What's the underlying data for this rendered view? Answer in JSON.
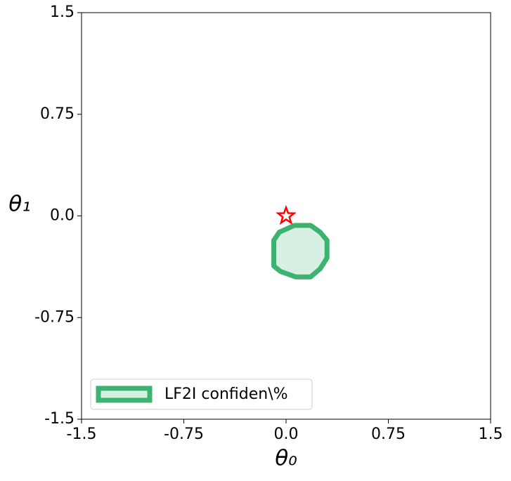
{
  "chart_data": {
    "type": "region",
    "x_label": "θ₀",
    "y_label": "θ₁",
    "xlim": [
      -1.5,
      1.5
    ],
    "ylim": [
      -1.5,
      1.5
    ],
    "xticks": [
      -1.5,
      -0.75,
      {
        "value": 0,
        "label": "0.0"
      },
      0.75,
      1.5
    ],
    "yticks": [
      -1.5,
      -0.75,
      {
        "value": 0,
        "label": "0.0"
      },
      0.75,
      1.5
    ],
    "series": [
      {
        "name": "LF2I confiden\\%",
        "color": "#3cb371",
        "x": [
          0.06,
          0.18,
          0.25,
          0.3,
          0.3,
          0.25,
          0.18,
          0.07,
          -0.04,
          -0.09,
          -0.09,
          -0.05
        ],
        "y": [
          -0.07,
          -0.07,
          -0.12,
          -0.18,
          -0.31,
          -0.39,
          -0.45,
          -0.45,
          -0.41,
          -0.37,
          -0.18,
          -0.12
        ]
      }
    ],
    "points": {
      "x": [
        0
      ],
      "y": [
        0
      ],
      "color": "#ff0000",
      "marker": "star"
    },
    "legend": "lower left"
  }
}
